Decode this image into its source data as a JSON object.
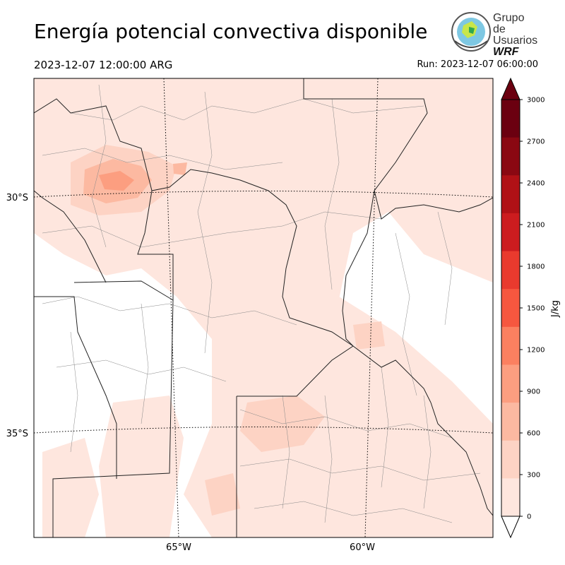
{
  "header": {
    "title": "Energía potencial convectiva disponible",
    "valid_time": "2023-12-07 12:00:00 ARG",
    "run_time": "Run: 2023-12-07 06:00:00"
  },
  "logo": {
    "line1": "Grupo de",
    "line2": "Usuarios",
    "line3": "WRF"
  },
  "map": {
    "lat_labels": [
      "30°S",
      "35°S"
    ],
    "lon_labels": [
      "65°W",
      "60°W"
    ]
  },
  "colorbar": {
    "label": "J/kg",
    "ticks": [
      "0",
      "300",
      "600",
      "900",
      "1200",
      "1500",
      "1800",
      "2100",
      "2400",
      "2700",
      "3000"
    ],
    "colors": [
      "#fee6de",
      "#fdd3c4",
      "#fcb9a1",
      "#fc9e80",
      "#fb8060",
      "#f6573f",
      "#e93a2e",
      "#cc1c1f",
      "#b01116",
      "#8a0812",
      "#6b0010"
    ],
    "extend": "both"
  }
}
